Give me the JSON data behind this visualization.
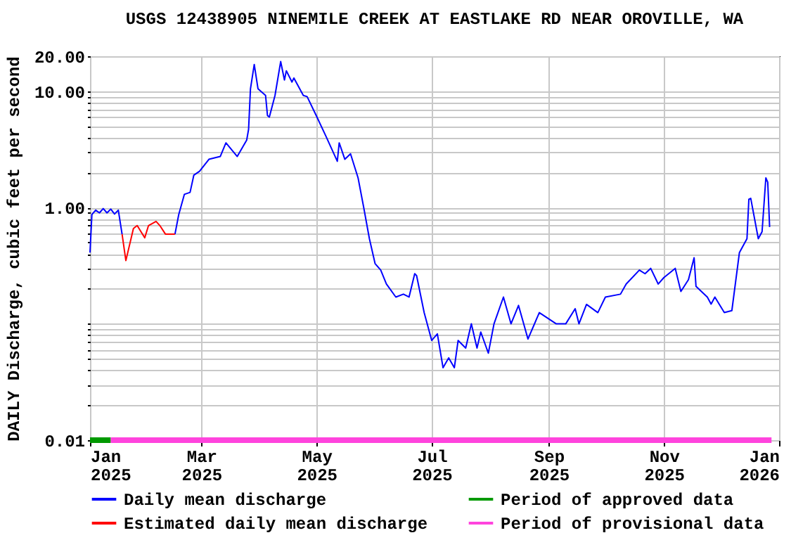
{
  "chart_data": {
    "type": "line",
    "title": "USGS 12438905 NINEMILE CREEK AT EASTLAKE RD NEAR OROVILLE, WA",
    "ylabel": "DAILY Discharge, cubic feet per second",
    "log": "y",
    "grid": true,
    "legend": "bottom",
    "xlim": [
      "2025-01-01",
      "2026-01-01"
    ],
    "xticks": [
      {
        "value": "2025-01-01",
        "label": "Jan 2025"
      },
      {
        "value": "2025-03-01",
        "label": "Mar 2025"
      },
      {
        "value": "2025-05-01",
        "label": "May 2025"
      },
      {
        "value": "2025-07-01",
        "label": "Jul 2025"
      },
      {
        "value": "2025-09-01",
        "label": "Sep 2025"
      },
      {
        "value": "2025-11-01",
        "label": "Nov 2025"
      },
      {
        "value": "2026-01-01",
        "label": "Jan 2026"
      }
    ],
    "ylim": [
      0.01,
      20
    ],
    "yticks": [
      {
        "value": 0.01,
        "label": "0.01"
      },
      {
        "value": 0.02,
        "label": null
      },
      {
        "value": 0.03,
        "label": null
      },
      {
        "value": 0.04,
        "label": null
      },
      {
        "value": 0.05,
        "label": null
      },
      {
        "value": 0.06,
        "label": null
      },
      {
        "value": 0.07,
        "label": null
      },
      {
        "value": 0.08,
        "label": null
      },
      {
        "value": 0.09,
        "label": null
      },
      {
        "value": 0.1,
        "label": null
      },
      {
        "value": 0.2,
        "label": null
      },
      {
        "value": 0.3,
        "label": null
      },
      {
        "value": 0.4,
        "label": null
      },
      {
        "value": 0.5,
        "label": null
      },
      {
        "value": 0.6,
        "label": null
      },
      {
        "value": 0.7,
        "label": null
      },
      {
        "value": 0.8,
        "label": null
      },
      {
        "value": 0.9,
        "label": null
      },
      {
        "value": 1,
        "label": "1.00"
      },
      {
        "value": 2,
        "label": null
      },
      {
        "value": 3,
        "label": null
      },
      {
        "value": 4,
        "label": null
      },
      {
        "value": 5,
        "label": null
      },
      {
        "value": 6,
        "label": null
      },
      {
        "value": 7,
        "label": null
      },
      {
        "value": 8,
        "label": null
      },
      {
        "value": 9,
        "label": null
      },
      {
        "value": 10,
        "label": "10.00"
      },
      {
        "value": 20,
        "label": "20.00"
      }
    ],
    "series": [
      {
        "name": "Daily mean discharge",
        "color": "#0000ff",
        "x": [
          "2025-01-01",
          "2025-01-02",
          "2025-01-04",
          "2025-01-06",
          "2025-01-08",
          "2025-01-10",
          "2025-01-12",
          "2025-01-14",
          "2025-01-16",
          "2025-01-18",
          "2025-02-01",
          "2025-02-15",
          "2025-02-17",
          "2025-02-20",
          "2025-02-23",
          "2025-02-25",
          "2025-02-28",
          "2025-03-05",
          "2025-03-11",
          "2025-03-14",
          "2025-03-20",
          "2025-03-25",
          "2025-03-26",
          "2025-03-27",
          "2025-03-29",
          "2025-03-31",
          "2025-04-04",
          "2025-04-05",
          "2025-04-06",
          "2025-04-09",
          "2025-04-12",
          "2025-04-14",
          "2025-04-15",
          "2025-04-18",
          "2025-04-19",
          "2025-04-24",
          "2025-04-26",
          "2025-05-01",
          "2025-05-06",
          "2025-05-12",
          "2025-05-13",
          "2025-05-16",
          "2025-05-19",
          "2025-05-23",
          "2025-05-26",
          "2025-05-29",
          "2025-06-01",
          "2025-06-04",
          "2025-06-07",
          "2025-06-12",
          "2025-06-16",
          "2025-06-19",
          "2025-06-22",
          "2025-06-23",
          "2025-06-27",
          "2025-07-01",
          "2025-07-04",
          "2025-07-07",
          "2025-07-10",
          "2025-07-13",
          "2025-07-15",
          "2025-07-19",
          "2025-07-22",
          "2025-07-25",
          "2025-07-27",
          "2025-07-31",
          "2025-08-03",
          "2025-08-08",
          "2025-08-12",
          "2025-08-16",
          "2025-08-21",
          "2025-08-27",
          "2025-09-05",
          "2025-09-10",
          "2025-09-15",
          "2025-09-17",
          "2025-09-21",
          "2025-09-27",
          "2025-10-01",
          "2025-10-09",
          "2025-10-12",
          "2025-10-19",
          "2025-10-22",
          "2025-10-25",
          "2025-10-29",
          "2025-11-01",
          "2025-11-07",
          "2025-11-10",
          "2025-11-14",
          "2025-11-17",
          "2025-11-18",
          "2025-11-24",
          "2025-11-26",
          "2025-11-28",
          "2025-12-03",
          "2025-12-07",
          "2025-12-11",
          "2025-12-15",
          "2025-12-16",
          "2025-12-17",
          "2025-12-21",
          "2025-12-23",
          "2025-12-25",
          "2025-12-26",
          "2025-12-27"
        ],
        "values": [
          0.41,
          0.87,
          0.95,
          0.9,
          0.98,
          0.9,
          0.97,
          0.88,
          0.95,
          0.59,
          null,
          0.59,
          0.87,
          1.3,
          1.35,
          1.9,
          2.05,
          2.6,
          2.75,
          3.6,
          2.75,
          3.8,
          4.7,
          10.5,
          17,
          10.5,
          9.2,
          6.2,
          6,
          9.2,
          18,
          12.5,
          15,
          12,
          13,
          9.2,
          9,
          6.1,
          4.1,
          2.5,
          3.6,
          2.6,
          2.9,
          1.8,
          1,
          0.54,
          0.33,
          0.29,
          0.22,
          0.17,
          0.18,
          0.17,
          0.27,
          0.26,
          0.125,
          0.072,
          0.082,
          0.042,
          0.051,
          0.042,
          0.072,
          0.062,
          0.1,
          0.062,
          0.085,
          0.056,
          0.1,
          0.17,
          0.1,
          0.144,
          0.074,
          0.125,
          0.1,
          0.1,
          0.135,
          0.1,
          0.147,
          0.125,
          0.17,
          0.18,
          0.22,
          0.29,
          0.27,
          0.3,
          0.22,
          0.25,
          0.3,
          0.19,
          0.24,
          0.37,
          0.21,
          0.17,
          0.148,
          0.17,
          0.125,
          0.13,
          0.41,
          0.54,
          1.18,
          1.2,
          0.54,
          0.62,
          1.8,
          1.65,
          0.68
        ]
      },
      {
        "name": "Estimated daily mean discharge",
        "color": "#ff0000",
        "x": [
          "2025-01-18",
          "2025-01-20",
          "2025-01-24",
          "2025-01-26",
          "2025-01-28",
          "2025-01-30",
          "2025-02-01",
          "2025-02-05",
          "2025-02-07",
          "2025-02-10",
          "2025-02-15"
        ],
        "values": [
          0.59,
          0.35,
          0.66,
          0.7,
          0.62,
          0.55,
          0.7,
          0.76,
          0.7,
          0.59,
          0.59
        ]
      },
      {
        "name": "Period of approved data",
        "color": "#009900",
        "x": [
          "2025-01-01",
          "2025-01-12"
        ],
        "values": [
          0.01,
          0.01
        ]
      },
      {
        "name": "Period of provisional data",
        "color": "#ff44dd",
        "x": [
          "2025-01-12",
          "2025-12-28"
        ],
        "values": [
          0.01,
          0.01
        ]
      }
    ]
  }
}
